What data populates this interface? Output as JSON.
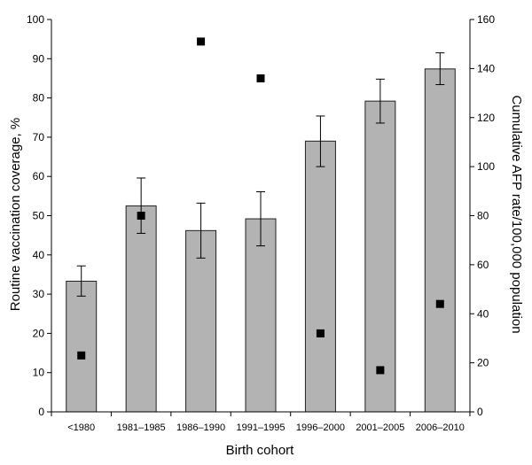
{
  "chart_data": {
    "type": "bar",
    "categories": [
      "<1980",
      "1981–1985",
      "1986–1990",
      "1991–1995",
      "1996–2000",
      "2001–2005",
      "2006–2010"
    ],
    "series": [
      {
        "axis": "left",
        "kind": "bar",
        "values": [
          33.3,
          52.5,
          46.2,
          49.2,
          69.0,
          79.2,
          87.4
        ],
        "error_low": [
          29.5,
          45.5,
          39.2,
          42.3,
          62.5,
          73.6,
          83.4
        ],
        "error_high": [
          37.2,
          59.6,
          53.2,
          56.1,
          75.4,
          84.8,
          91.5
        ]
      },
      {
        "axis": "right",
        "kind": "scatter",
        "marker": "square",
        "values": [
          23,
          80,
          151,
          136,
          32,
          17,
          44
        ]
      }
    ],
    "xlabel": "Birth cohort",
    "ylabel": "Routine vaccination coverage, %",
    "y2label": "Cumulative AFP rate/100,000 population",
    "ylim": [
      0,
      100
    ],
    "y2lim": [
      0,
      160
    ],
    "yticks": [
      0,
      10,
      20,
      30,
      40,
      50,
      60,
      70,
      80,
      90,
      100
    ],
    "y2ticks": [
      0,
      20,
      40,
      60,
      80,
      100,
      120,
      140,
      160
    ],
    "grid": false,
    "colors": {
      "bar": "#b3b3b3",
      "marker": "#000000"
    }
  }
}
